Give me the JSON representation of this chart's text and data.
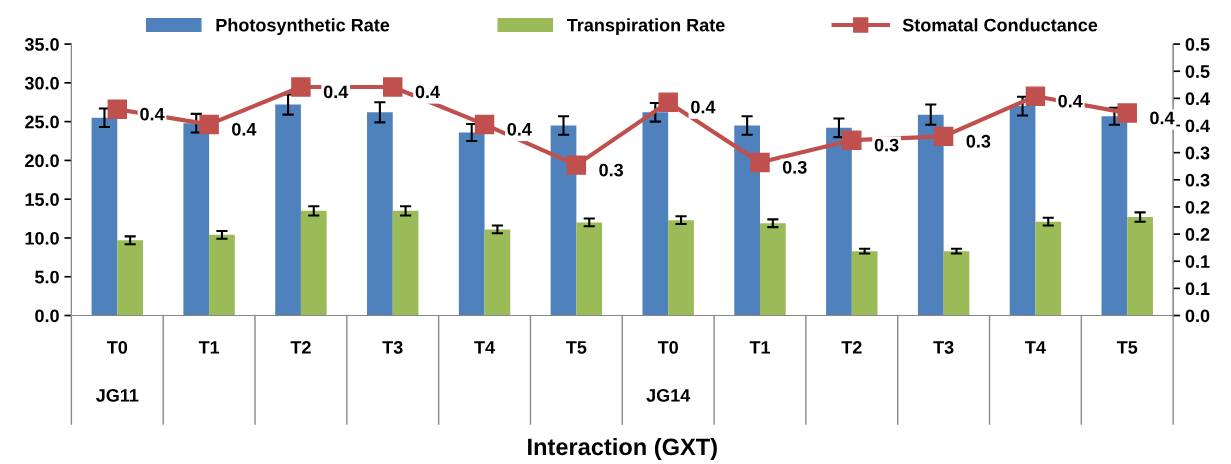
{
  "chart_data": {
    "type": "bar",
    "xlabel": "Interaction (GXT)",
    "categories": [
      "T0",
      "T1",
      "T2",
      "T3",
      "T4",
      "T5",
      "T0",
      "T1",
      "T2",
      "T3",
      "T4",
      "T5"
    ],
    "annotations": [
      "JG11",
      "JG14"
    ],
    "series": [
      {
        "name": "Photosynthetic Rate",
        "color": "#4f81bd",
        "values": [
          25.5,
          24.8,
          27.2,
          26.2,
          23.6,
          24.5,
          26.2,
          24.5,
          24.2,
          25.9,
          27.0,
          25.7
        ],
        "errors": [
          1.2,
          1.2,
          1.3,
          1.3,
          1.1,
          1.2,
          1.2,
          1.2,
          1.2,
          1.3,
          1.2,
          1.1
        ]
      },
      {
        "name": "Transpiration Rate",
        "color": "#9bbb59",
        "values": [
          9.7,
          10.4,
          13.5,
          13.5,
          11.1,
          12.0,
          12.3,
          11.9,
          8.3,
          8.3,
          12.1,
          12.7
        ],
        "errors": [
          0.5,
          0.5,
          0.6,
          0.6,
          0.5,
          0.5,
          0.5,
          0.5,
          0.3,
          0.3,
          0.5,
          0.6
        ]
      },
      {
        "name": "Stomatal Conductance",
        "type": "line",
        "axis": "y2",
        "color": "#c0504d",
        "marker": "square",
        "values": [
          0.38,
          0.352,
          0.421,
          0.421,
          0.352,
          0.277,
          0.393,
          0.282,
          0.323,
          0.33,
          0.404,
          0.373
        ],
        "value_labels": [
          "0.4",
          "0.4",
          "0.4",
          "0.4",
          "0.4",
          "0.3",
          "0.4",
          "0.3",
          "0.3",
          "0.3",
          "0.4",
          "0.4"
        ]
      }
    ],
    "ylim": [
      0,
      35
    ],
    "yticks": [
      {
        "value": 0,
        "label": "0.0"
      },
      {
        "value": 5,
        "label": "5.0"
      },
      {
        "value": 10,
        "label": "10.0"
      },
      {
        "value": 15,
        "label": "15.0"
      },
      {
        "value": 20,
        "label": "20.0"
      },
      {
        "value": 25,
        "label": "25.0"
      },
      {
        "value": 30,
        "label": "30.0"
      },
      {
        "value": 35,
        "label": "35.0"
      }
    ],
    "y2lim": [
      0,
      0.5
    ],
    "y2ticks": [
      {
        "value": 0,
        "label": "0.0"
      },
      {
        "value": 0.05,
        "label": "0.1"
      },
      {
        "value": 0.1,
        "label": "0.1"
      },
      {
        "value": 0.15,
        "label": "0.2"
      },
      {
        "value": 0.2,
        "label": "0.2"
      },
      {
        "value": 0.25,
        "label": "0.3"
      },
      {
        "value": 0.3,
        "label": "0.3"
      },
      {
        "value": 0.35,
        "label": "0.4"
      },
      {
        "value": 0.4,
        "label": "0.4"
      },
      {
        "value": 0.45,
        "label": "0.5"
      },
      {
        "value": 0.5,
        "label": "0.5"
      }
    ],
    "legend": "top",
    "grid": false
  }
}
